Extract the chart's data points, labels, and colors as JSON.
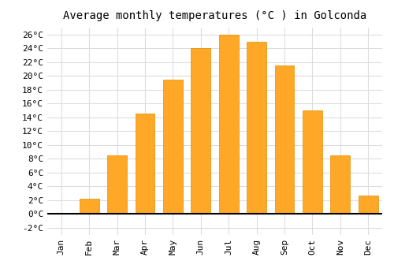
{
  "months": [
    "Jan",
    "Feb",
    "Mar",
    "Apr",
    "May",
    "Jun",
    "Jul",
    "Aug",
    "Sep",
    "Oct",
    "Nov",
    "Dec"
  ],
  "values": [
    0,
    2.2,
    8.5,
    14.5,
    19.5,
    24.0,
    26.0,
    25.0,
    21.5,
    15.0,
    8.5,
    2.7
  ],
  "bar_color": "#FFA726",
  "bar_edge_color": "#E09000",
  "title": "Average monthly temperatures (°C ) in Golconda",
  "title_fontsize": 10,
  "ylim": [
    -3,
    27
  ],
  "yticks": [
    -2,
    0,
    2,
    4,
    6,
    8,
    10,
    12,
    14,
    16,
    18,
    20,
    22,
    24,
    26
  ],
  "background_color": "#ffffff",
  "grid_color": "#dddddd",
  "bar_width": 0.7
}
